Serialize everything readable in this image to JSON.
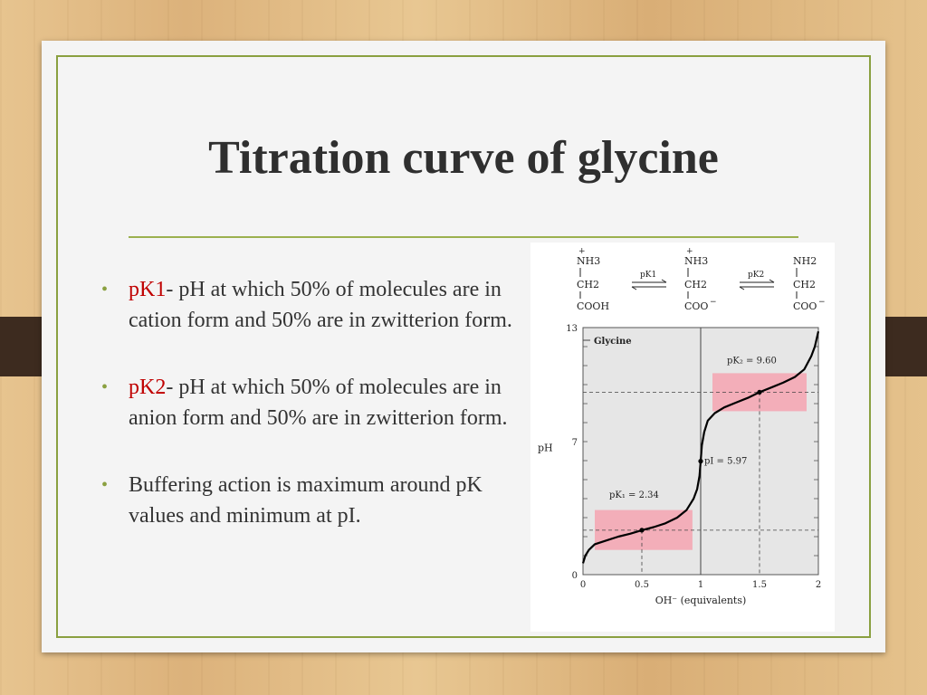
{
  "slide": {
    "title": "Titration curve of glycine",
    "bullets": [
      {
        "term": "pK1",
        "text": "- pH at which 50% of molecules are in cation form and 50% are in zwitterion form."
      },
      {
        "term": "pK2",
        "text": "- pH at which 50% of molecules are in anion form and 50% are in zwitterion form."
      },
      {
        "term": "",
        "text": "Buffering action is maximum around pK values and minimum at pI."
      }
    ]
  },
  "scheme": {
    "species": [
      {
        "top_charge": "+",
        "top": "NH3",
        "mid": "CH2",
        "bottom": "COOH",
        "bottom_charge": ""
      },
      {
        "top_charge": "+",
        "top": "NH3",
        "mid": "CH2",
        "bottom": "COO",
        "bottom_charge": "−"
      },
      {
        "top_charge": "",
        "top": "NH2",
        "mid": "CH2",
        "bottom": "COO",
        "bottom_charge": "−"
      }
    ],
    "arrow_labels": [
      "pK1",
      "pK2"
    ]
  },
  "colors": {
    "accent": "#8aa040",
    "term": "#c00000",
    "buffer_zone": "#f4a7b4",
    "plot_bg": "#e6e6e6"
  },
  "chart_data": {
    "type": "line",
    "title": "",
    "inset_label": "Glycine",
    "xlabel": "OH⁻ (equivalents)",
    "ylabel": "pH",
    "xlim": [
      0,
      2
    ],
    "ylim": [
      0,
      13
    ],
    "x_ticks": [
      "0",
      "0.5",
      "1",
      "1.5",
      "2"
    ],
    "y_ticks": [
      "0",
      "7",
      "13"
    ],
    "series": [
      {
        "x": [
          0.0,
          0.02,
          0.05,
          0.1,
          0.2,
          0.3,
          0.4,
          0.5,
          0.6,
          0.7,
          0.8,
          0.88,
          0.94,
          0.97,
          0.99,
          1.0,
          1.01,
          1.03,
          1.06,
          1.12,
          1.2,
          1.3,
          1.4,
          1.5,
          1.6,
          1.7,
          1.8,
          1.88,
          1.94,
          1.97,
          2.0
        ],
        "y": [
          0.6,
          1.0,
          1.3,
          1.6,
          1.8,
          2.0,
          2.15,
          2.34,
          2.5,
          2.7,
          3.0,
          3.4,
          4.0,
          4.5,
          5.2,
          5.97,
          6.8,
          7.5,
          8.1,
          8.5,
          8.8,
          9.05,
          9.3,
          9.6,
          9.85,
          10.1,
          10.4,
          10.8,
          11.5,
          12.0,
          12.8
        ]
      }
    ],
    "annotations": [
      {
        "label": "pK₁ = 2.34",
        "x": 0.5,
        "y": 2.34
      },
      {
        "label": "pI = 5.97",
        "x": 1.0,
        "y": 5.97
      },
      {
        "label": "pK₂ = 9.60",
        "x": 1.5,
        "y": 9.6
      }
    ],
    "buffer_regions": [
      {
        "x": [
          0.1,
          0.93
        ],
        "y": [
          1.3,
          3.4
        ]
      },
      {
        "x": [
          1.1,
          1.9
        ],
        "y": [
          8.6,
          10.6
        ]
      }
    ]
  }
}
